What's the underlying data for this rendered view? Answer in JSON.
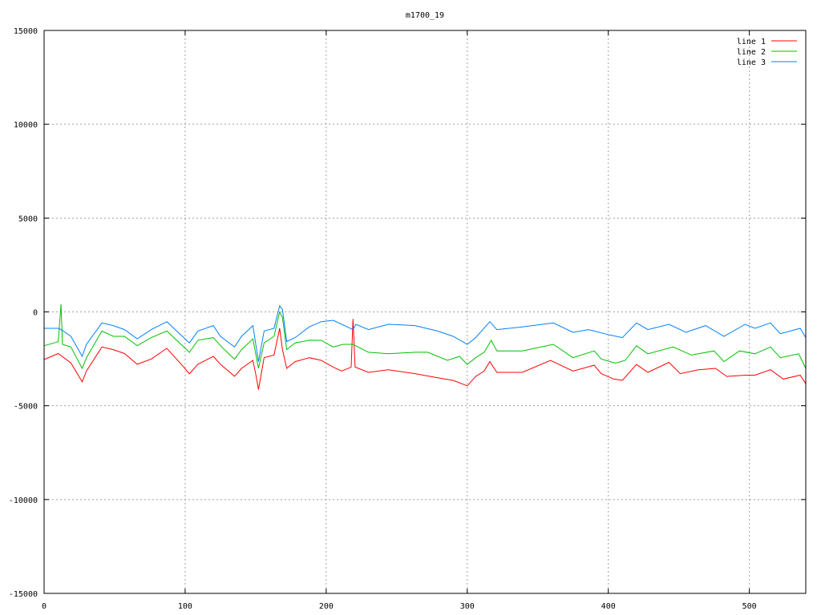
{
  "chart_data": {
    "type": "line",
    "title": "m1700_19",
    "xlabel": "",
    "ylabel": "",
    "xlim": [
      0,
      540
    ],
    "ylim": [
      -15000,
      15000
    ],
    "xticks": [
      "0",
      "100",
      "200",
      "300",
      "400",
      "500"
    ],
    "yticks": [
      "-15000",
      "-10000",
      "-5000",
      "0",
      "5000",
      "10000",
      "15000"
    ],
    "grid": true,
    "legend_position": "top-right",
    "series": [
      {
        "name": "line 1",
        "color": "#ff0000",
        "x": [
          0,
          10,
          19,
          27,
          30,
          41,
          49,
          57,
          66,
          76,
          87,
          99,
          103,
          109,
          120,
          125,
          135,
          140,
          148,
          150,
          152,
          156,
          163,
          167,
          169,
          172,
          178,
          188,
          196.5,
          205,
          211,
          217.7,
          219,
          220.5,
          230,
          244,
          263,
          279,
          290,
          300,
          306,
          312,
          316,
          321,
          339,
          359,
          375,
          390,
          395,
          404,
          410,
          420,
          428,
          443,
          451,
          464,
          476,
          484,
          497,
          504,
          515,
          524,
          536,
          540
        ],
        "y": [
          -2540,
          -2220,
          -2720,
          -3720,
          -3150,
          -1870,
          -2010,
          -2220,
          -2790,
          -2510,
          -1940,
          -2940,
          -3300,
          -2790,
          -2370,
          -2790,
          -3430,
          -3010,
          -2580,
          -3300,
          -4140,
          -2440,
          -2300,
          -875,
          -2010,
          -3010,
          -2650,
          -2440,
          -2580,
          -2940,
          -3150,
          -2940,
          -377,
          -2940,
          -3220,
          -3080,
          -3290,
          -3510,
          -3650,
          -3940,
          -3440,
          -3150,
          -2650,
          -3220,
          -3220,
          -2580,
          -3150,
          -2840,
          -3290,
          -3580,
          -3650,
          -2800,
          -3220,
          -2690,
          -3290,
          -3080,
          -3010,
          -3440,
          -3370,
          -3370,
          -3080,
          -3580,
          -3370,
          -3830
        ]
      },
      {
        "name": "line 2",
        "color": "#00c000",
        "x": [
          0,
          10,
          12,
          13,
          19,
          27,
          30,
          41,
          49,
          57,
          66,
          76,
          87,
          99,
          103,
          109,
          120,
          125,
          135,
          140,
          148,
          152,
          156,
          163,
          167,
          169,
          172,
          178,
          188,
          196.5,
          205,
          212,
          219,
          230,
          244,
          263,
          272,
          286,
          294.5,
          300,
          306,
          312,
          317,
          321,
          339,
          361,
          375,
          390,
          395,
          405,
          412,
          420,
          428,
          446,
          459,
          475,
          482,
          493,
          504,
          515,
          522,
          535,
          540
        ],
        "y": [
          -1800,
          -1590,
          405,
          -1730,
          -1870,
          -3010,
          -2450,
          -1020,
          -1300,
          -1300,
          -1800,
          -1370,
          -1020,
          -1870,
          -2160,
          -1510,
          -1370,
          -1800,
          -2520,
          -2010,
          -1440,
          -3010,
          -1650,
          -1300,
          0,
          -300,
          -2010,
          -1650,
          -1510,
          -1515,
          -1870,
          -1730,
          -1730,
          -2150,
          -2230,
          -2150,
          -2150,
          -2580,
          -2370,
          -2800,
          -2440,
          -2150,
          -1515,
          -2080,
          -2080,
          -1730,
          -2440,
          -2080,
          -2510,
          -2730,
          -2580,
          -1800,
          -2230,
          -1870,
          -2300,
          -2080,
          -2650,
          -2080,
          -2230,
          -1870,
          -2440,
          -2230,
          -3010
        ]
      },
      {
        "name": "line 3",
        "color": "#0080ff",
        "x": [
          0,
          10,
          12,
          19,
          27,
          30,
          41,
          49,
          57,
          66,
          76,
          87,
          99,
          103,
          109,
          120,
          125,
          135,
          140,
          148,
          152,
          156,
          163,
          167,
          169,
          172,
          178,
          188,
          196.5,
          205,
          219,
          221,
          230,
          244,
          263,
          279,
          290,
          300,
          306,
          316,
          321,
          339,
          361,
          375,
          386,
          401,
          410,
          420,
          428,
          443,
          455,
          469,
          482,
          497,
          504,
          515,
          522,
          536,
          540
        ],
        "y": [
          -875,
          -875,
          -940,
          -1300,
          -2370,
          -1730,
          -590,
          -730,
          -945,
          -1440,
          -945,
          -520,
          -1370,
          -1650,
          -1020,
          -730,
          -1300,
          -1870,
          -1300,
          -730,
          -2650,
          -1020,
          -875,
          330,
          120,
          -1580,
          -1370,
          -800,
          -520,
          -450,
          -945,
          -660,
          -945,
          -660,
          -730,
          -1020,
          -1300,
          -1730,
          -1370,
          -520,
          -945,
          -800,
          -590,
          -1090,
          -945,
          -1230,
          -1370,
          -590,
          -945,
          -660,
          -1090,
          -730,
          -1300,
          -660,
          -875,
          -590,
          -1160,
          -875,
          -1370
        ]
      }
    ]
  }
}
